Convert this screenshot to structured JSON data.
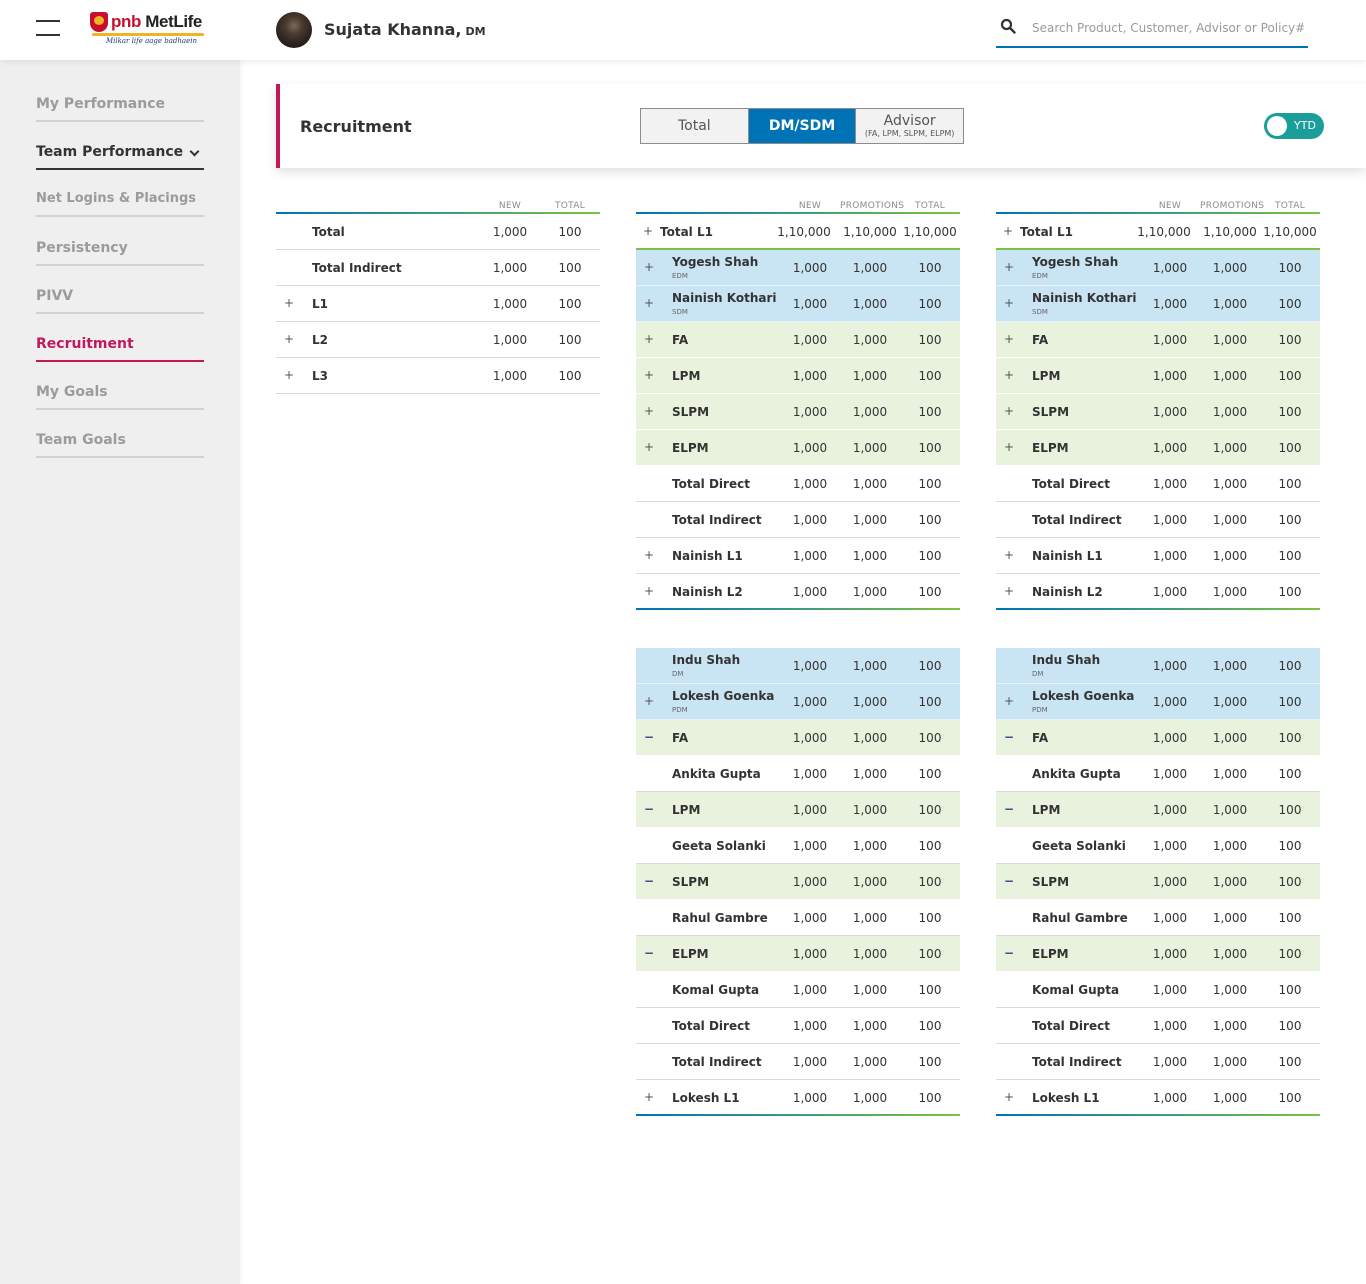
{
  "header": {
    "logo_text_a": "pnb",
    "logo_text_b": "MetLife",
    "logo_tagline": "Milkar life aage badhaein",
    "user_name": "Sujata Khanna,",
    "user_role": "DM",
    "search_placeholder": "Search Product, Customer, Advisor or Policy#"
  },
  "sidebar": {
    "items": [
      {
        "label": "My Performance"
      },
      {
        "label": "Team Performance"
      },
      {
        "label": "Net Logins & Placings"
      },
      {
        "label": "Persistency"
      },
      {
        "label": "PIVV"
      },
      {
        "label": "Recruitment"
      },
      {
        "label": "My Goals"
      },
      {
        "label": "Team Goals"
      }
    ]
  },
  "panel": {
    "title": "Recruitment",
    "segments": [
      {
        "label": "Total",
        "sub": ""
      },
      {
        "label": "DM/SDM",
        "sub": ""
      },
      {
        "label": "Advisor",
        "sub": "(FA, LPM, SLPM, ELPM)"
      }
    ],
    "selected_segment": "DM/SDM",
    "toggle_label": "YTD",
    "toggle_on": true
  },
  "summary_table": {
    "headers": [
      "NEW",
      "TOTAL"
    ],
    "rows": [
      {
        "name": "Total",
        "expand": "",
        "values": [
          "1,000",
          "100"
        ]
      },
      {
        "name": "Total Indirect",
        "expand": "",
        "values": [
          "1,000",
          "100"
        ]
      },
      {
        "name": "L1",
        "expand": "+",
        "values": [
          "1,000",
          "100"
        ]
      },
      {
        "name": "L2",
        "expand": "+",
        "values": [
          "1,000",
          "100"
        ]
      },
      {
        "name": "L3",
        "expand": "+",
        "values": [
          "1,000",
          "100"
        ]
      }
    ]
  },
  "detail_headers": [
    "NEW",
    "PROMOTIONS",
    "TOTAL"
  ],
  "detail_top": {
    "total_row": {
      "name": "Total L1",
      "values": [
        "1,10,000",
        "1,10,000",
        "1,10,000"
      ]
    },
    "rows": [
      {
        "name": "Yogesh Shah",
        "role": "EDM",
        "style": "blue",
        "expand": "+",
        "values": [
          "1,000",
          "1,000",
          "100"
        ]
      },
      {
        "name": "Nainish Kothari",
        "role": "SDM",
        "style": "blue",
        "expand": "+",
        "values": [
          "1,000",
          "1,000",
          "100"
        ]
      },
      {
        "name": "FA",
        "role": "",
        "style": "green",
        "expand": "+",
        "values": [
          "1,000",
          "1,000",
          "100"
        ]
      },
      {
        "name": "LPM",
        "role": "",
        "style": "green",
        "expand": "+",
        "values": [
          "1,000",
          "1,000",
          "100"
        ]
      },
      {
        "name": "SLPM",
        "role": "",
        "style": "green",
        "expand": "+",
        "values": [
          "1,000",
          "1,000",
          "100"
        ]
      },
      {
        "name": "ELPM",
        "role": "",
        "style": "green",
        "expand": "+",
        "values": [
          "1,000",
          "1,000",
          "100"
        ]
      },
      {
        "name": "Total Direct",
        "role": "",
        "style": "",
        "expand": "",
        "values": [
          "1,000",
          "1,000",
          "100"
        ]
      },
      {
        "name": "Total Indirect",
        "role": "",
        "style": "",
        "expand": "",
        "values": [
          "1,000",
          "1,000",
          "100"
        ]
      },
      {
        "name": "Nainish L1",
        "role": "",
        "style": "",
        "expand": "+",
        "values": [
          "1,000",
          "1,000",
          "100"
        ]
      },
      {
        "name": "Nainish L2",
        "role": "",
        "style": "last",
        "expand": "+",
        "values": [
          "1,000",
          "1,000",
          "100"
        ]
      }
    ]
  },
  "detail_bottom": {
    "rows": [
      {
        "name": "Indu Shah",
        "role": "DM",
        "style": "blue",
        "expand": "",
        "values": [
          "1,000",
          "1,000",
          "100"
        ]
      },
      {
        "name": "Lokesh Goenka",
        "role": "PDM",
        "style": "blue",
        "expand": "+",
        "values": [
          "1,000",
          "1,000",
          "100"
        ]
      },
      {
        "name": "FA",
        "role": "",
        "style": "green",
        "expand": "−",
        "values": [
          "1,000",
          "1,000",
          "100"
        ]
      },
      {
        "name": "Ankita Gupta",
        "role": "",
        "style": "",
        "expand": "",
        "values": [
          "1,000",
          "1,000",
          "100"
        ]
      },
      {
        "name": "LPM",
        "role": "",
        "style": "green",
        "expand": "−",
        "values": [
          "1,000",
          "1,000",
          "100"
        ]
      },
      {
        "name": "Geeta Solanki",
        "role": "",
        "style": "",
        "expand": "",
        "values": [
          "1,000",
          "1,000",
          "100"
        ]
      },
      {
        "name": "SLPM",
        "role": "",
        "style": "green",
        "expand": "−",
        "values": [
          "1,000",
          "1,000",
          "100"
        ]
      },
      {
        "name": "Rahul Gambre",
        "role": "",
        "style": "",
        "expand": "",
        "values": [
          "1,000",
          "1,000",
          "100"
        ]
      },
      {
        "name": "ELPM",
        "role": "",
        "style": "green",
        "expand": "−",
        "values": [
          "1,000",
          "1,000",
          "100"
        ]
      },
      {
        "name": "Komal Gupta",
        "role": "",
        "style": "",
        "expand": "",
        "values": [
          "1,000",
          "1,000",
          "100"
        ]
      },
      {
        "name": "Total Direct",
        "role": "",
        "style": "",
        "expand": "",
        "values": [
          "1,000",
          "1,000",
          "100"
        ]
      },
      {
        "name": "Total Indirect",
        "role": "",
        "style": "",
        "expand": "",
        "values": [
          "1,000",
          "1,000",
          "100"
        ]
      },
      {
        "name": "Lokesh L1",
        "role": "",
        "style": "last",
        "expand": "+",
        "values": [
          "1,000",
          "1,000",
          "100"
        ]
      }
    ]
  },
  "colors": {
    "accent_blue": "#0073b7",
    "accent_pink": "#c2185b",
    "toggle_teal": "#1a9e9a",
    "row_blue": "#c9e4f2",
    "row_green": "#e9f2dd",
    "header_line_green": "#7cc242"
  },
  "icons": {
    "menu": "hamburger-icon",
    "search": "search-icon",
    "nav_expand": "chevron-down-icon",
    "row_expand": "plus-icon",
    "row_collapse": "minus-icon"
  }
}
